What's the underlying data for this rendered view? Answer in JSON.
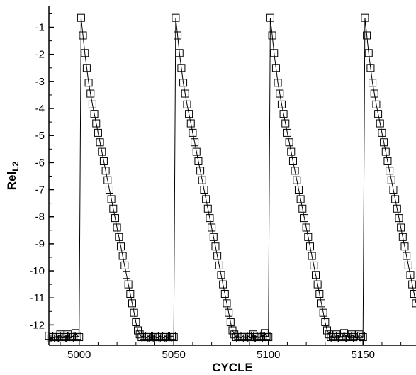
{
  "chart_data": {
    "type": "line",
    "xlabel": "CYCLE",
    "ylabel": {
      "main": "Rel",
      "subscript": "L2"
    },
    "xlim": [
      4984,
      5178
    ],
    "ylim": [
      -12.75,
      -0.2
    ],
    "x_ticks": [
      5000,
      5050,
      5100,
      5150
    ],
    "y_ticks": [
      -1,
      -2,
      -3,
      -4,
      -5,
      -6,
      -7,
      -8,
      -9,
      -10,
      -11,
      -12
    ],
    "grid": false,
    "legend": "none",
    "marker": "open-square",
    "line_color": "#000000",
    "series": [
      {
        "x": [
          4984,
          4985,
          4986,
          4987,
          4988,
          4989,
          4990,
          4991,
          4992,
          4993,
          4994,
          4995,
          4996,
          4997,
          4998,
          4999,
          5000,
          5001,
          5002,
          5003,
          5004,
          5005,
          5006,
          5007,
          5008,
          5009,
          5010,
          5011,
          5012,
          5013,
          5014,
          5015,
          5016,
          5017,
          5018,
          5019,
          5020,
          5021,
          5022,
          5023,
          5024,
          5025,
          5026,
          5027,
          5028,
          5029,
          5030,
          5031,
          5032,
          5033,
          5034,
          5035,
          5036,
          5037,
          5038,
          5039,
          5040,
          5041,
          5042,
          5043,
          5044,
          5045,
          5046,
          5047,
          5048,
          5049,
          5050,
          5051,
          5052,
          5053,
          5054,
          5055,
          5056,
          5057,
          5058,
          5059,
          5060,
          5061,
          5062,
          5063,
          5064,
          5065,
          5066,
          5067,
          5068,
          5069,
          5070,
          5071,
          5072,
          5073,
          5074,
          5075,
          5076,
          5077,
          5078,
          5079,
          5080,
          5081,
          5082,
          5083,
          5084,
          5085,
          5086,
          5087,
          5088,
          5089,
          5090,
          5091,
          5092,
          5093,
          5094,
          5095,
          5096,
          5097,
          5098,
          5099,
          5100,
          5101,
          5102,
          5103,
          5104,
          5105,
          5106,
          5107,
          5108,
          5109,
          5110,
          5111,
          5112,
          5113,
          5114,
          5115,
          5116,
          5117,
          5118,
          5119,
          5120,
          5121,
          5122,
          5123,
          5124,
          5125,
          5126,
          5127,
          5128,
          5129,
          5130,
          5131,
          5132,
          5133,
          5134,
          5135,
          5136,
          5137,
          5138,
          5139,
          5140,
          5141,
          5142,
          5143,
          5144,
          5145,
          5146,
          5147,
          5148,
          5149,
          5150,
          5151,
          5152,
          5153,
          5154,
          5155,
          5156,
          5157,
          5158,
          5159,
          5160,
          5161,
          5162,
          5163,
          5164,
          5165,
          5166,
          5167,
          5168,
          5169,
          5170,
          5171,
          5172,
          5173,
          5174,
          5175,
          5176,
          5177,
          5178
        ],
        "y": [
          -12.4,
          -12.5,
          -12.45,
          -12.5,
          -12.4,
          -12.45,
          -12.35,
          -12.5,
          -12.4,
          -12.45,
          -12.35,
          -12.5,
          -12.4,
          -12.45,
          -12.3,
          -12.4,
          -12.45,
          -0.65,
          -1.3,
          -1.95,
          -2.5,
          -3.05,
          -3.45,
          -3.85,
          -4.2,
          -4.55,
          -4.9,
          -5.25,
          -5.6,
          -5.95,
          -6.3,
          -6.65,
          -7.0,
          -7.35,
          -7.7,
          -8.05,
          -8.4,
          -8.75,
          -9.1,
          -9.45,
          -9.8,
          -10.15,
          -10.5,
          -10.85,
          -11.2,
          -11.55,
          -11.9,
          -12.2,
          -12.35,
          -12.45,
          -12.4,
          -12.5,
          -12.45,
          -12.4,
          -12.5,
          -12.45,
          -12.4,
          -12.5,
          -12.45,
          -12.4,
          -12.5,
          -12.45,
          -12.4,
          -12.5,
          -12.45,
          -12.4,
          -12.45,
          -0.65,
          -1.3,
          -1.95,
          -2.5,
          -3.05,
          -3.45,
          -3.85,
          -4.2,
          -4.55,
          -4.9,
          -5.25,
          -5.6,
          -5.95,
          -6.3,
          -6.65,
          -7.0,
          -7.35,
          -7.7,
          -8.05,
          -8.4,
          -8.75,
          -9.1,
          -9.45,
          -9.8,
          -10.15,
          -10.5,
          -10.85,
          -11.2,
          -11.55,
          -11.9,
          -12.2,
          -12.35,
          -12.45,
          -12.4,
          -12.5,
          -12.45,
          -12.4,
          -12.5,
          -12.4,
          -12.45,
          -12.5,
          -12.35,
          -12.45,
          -12.4,
          -12.5,
          -12.4,
          -12.45,
          -12.3,
          -12.4,
          -12.45,
          -0.65,
          -1.3,
          -1.95,
          -2.5,
          -3.05,
          -3.45,
          -3.85,
          -4.2,
          -4.55,
          -4.9,
          -5.25,
          -5.6,
          -5.95,
          -6.3,
          -6.65,
          -7.0,
          -7.35,
          -7.7,
          -8.05,
          -8.4,
          -8.75,
          -9.1,
          -9.45,
          -9.8,
          -10.15,
          -10.5,
          -10.85,
          -11.2,
          -11.55,
          -11.9,
          -12.2,
          -12.35,
          -12.45,
          -12.4,
          -12.5,
          -12.35,
          -12.45,
          -12.4,
          -12.5,
          -12.3,
          -12.45,
          -12.4,
          -12.5,
          -12.35,
          -12.45,
          -12.4,
          -12.5,
          -12.35,
          -12.4,
          -12.45,
          -0.65,
          -1.3,
          -1.95,
          -2.5,
          -3.05,
          -3.45,
          -3.85,
          -4.2,
          -4.55,
          -4.9,
          -5.25,
          -5.6,
          -5.95,
          -6.3,
          -6.65,
          -7.0,
          -7.35,
          -7.7,
          -8.05,
          -8.4,
          -8.75,
          -9.1,
          -9.45,
          -9.8,
          -10.15,
          -10.5,
          -10.85,
          -11.2
        ]
      }
    ]
  }
}
